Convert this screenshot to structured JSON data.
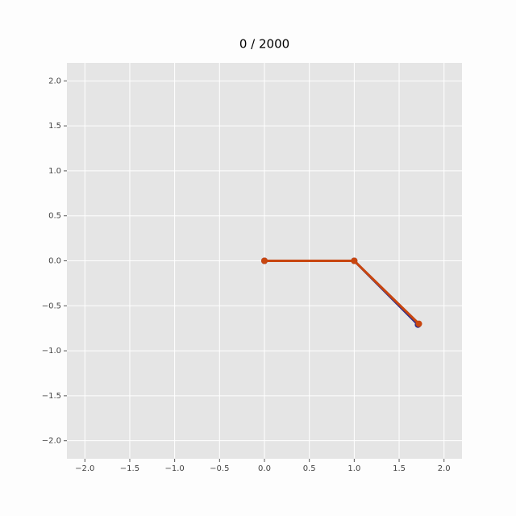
{
  "chart_data": {
    "type": "line",
    "title": "0 / 2000",
    "series": [
      {
        "color": "#2b2a8c",
        "x": [
          0,
          1,
          1.71
        ],
        "values": [
          0,
          0,
          -0.71
        ]
      },
      {
        "color": "#c8460f",
        "x": [
          0,
          1,
          1.72
        ],
        "values": [
          0,
          0,
          -0.7
        ]
      }
    ],
    "xlim": [
      -2.2,
      2.2
    ],
    "ylim": [
      -2.2,
      2.2
    ],
    "xticks": [
      {
        "value": -2,
        "label": "−2.0"
      },
      {
        "value": -1.5,
        "label": "−1.5"
      },
      {
        "value": -1,
        "label": "−1.0"
      },
      {
        "value": -0.5,
        "label": "−0.5"
      },
      {
        "value": 0,
        "label": "0.0"
      },
      0.5,
      {
        "value": 1,
        "label": "1.0"
      },
      1.5,
      {
        "value": 2,
        "label": "2.0"
      }
    ],
    "yticks": [
      {
        "value": -2,
        "label": "−2.0"
      },
      {
        "value": -1.5,
        "label": "−1.5"
      },
      {
        "value": -1,
        "label": "−1.0"
      },
      {
        "value": -0.5,
        "label": "−0.5"
      },
      {
        "value": 0,
        "label": "0.0"
      },
      0.5,
      {
        "value": 1,
        "label": "1.0"
      },
      1.5,
      {
        "value": 2,
        "label": "2.0"
      }
    ],
    "grid": true
  }
}
